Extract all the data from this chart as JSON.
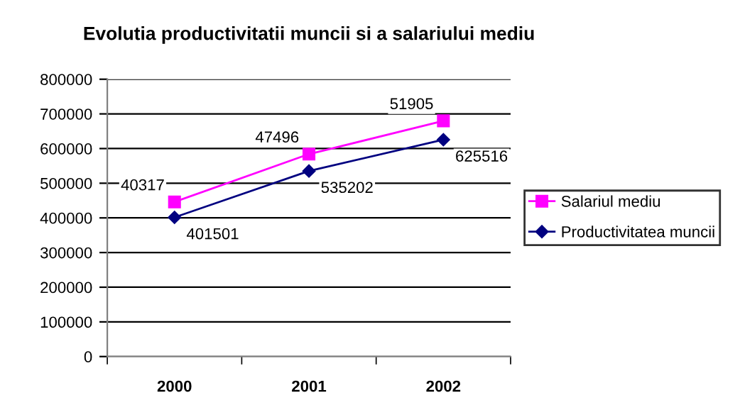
{
  "chart_data": {
    "type": "line",
    "title": "Evolutia productivitatii muncii si a salariului mediu",
    "categories": [
      "2000",
      "2001",
      "2002"
    ],
    "series": [
      {
        "name": "Salariul mediu",
        "color": "#ff00ff",
        "marker": "square",
        "values": [
          446000,
          584000,
          680000
        ]
      },
      {
        "name": "Productivitatea muncii",
        "color": "#000080",
        "marker": "diamond",
        "values": [
          401501,
          535202,
          625516
        ],
        "value_labels": [
          "401501",
          "535202",
          "625516"
        ]
      }
    ],
    "ylim": [
      0,
      800000
    ],
    "yticks": [
      0,
      100000,
      200000,
      300000,
      400000,
      500000,
      600000,
      700000,
      800000
    ],
    "annotations": [
      {
        "text": "40317",
        "x": "2000",
        "y": 446000
      },
      {
        "text": "47496",
        "x": "2001",
        "y": 584000
      },
      {
        "text": "51905",
        "x": "2002",
        "y": 680000
      }
    ],
    "grid": "y",
    "legend": "right"
  }
}
